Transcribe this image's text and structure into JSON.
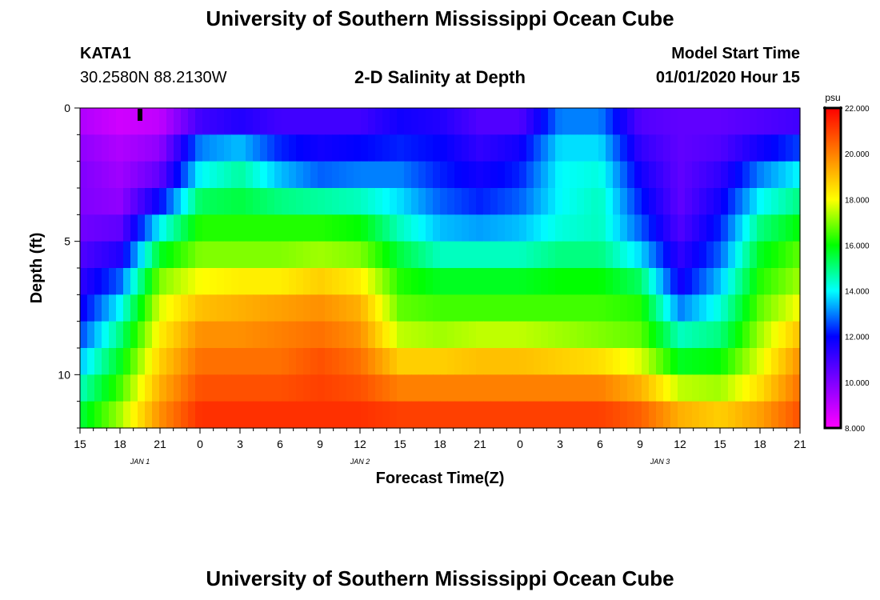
{
  "header": {
    "title": "University of Southern Mississippi Ocean Cube",
    "station": "KATA1",
    "coords": "30.2580N 88.2130W",
    "subtitle": "2-D Salinity at Depth",
    "model_start_label": "Model Start Time",
    "model_start_value": "01/01/2020 Hour 15"
  },
  "footer": {
    "title": "University of Southern Mississippi Ocean Cube"
  },
  "chart_data": {
    "type": "heatmap",
    "title": "2-D Salinity at Depth",
    "xlabel": "Forecast Time(Z)",
    "ylabel": "Depth (ft)",
    "x_tick_labels": [
      "15",
      "18",
      "21",
      "0",
      "3",
      "6",
      "9",
      "12",
      "15",
      "18",
      "21",
      "0",
      "3",
      "6",
      "9",
      "12",
      "15",
      "18",
      "21"
    ],
    "date_labels": [
      {
        "text": "JAN 1",
        "tick_index": 1.5
      },
      {
        "text": "JAN 2",
        "tick_index": 7
      },
      {
        "text": "JAN 3",
        "tick_index": 14.5
      }
    ],
    "y_ticks": [
      0,
      5,
      10
    ],
    "y_range": [
      0,
      12
    ],
    "colorbar": {
      "units": "psu",
      "min": 8.0,
      "max": 22.0,
      "tick_labels": [
        "22.000",
        "20.000",
        "18.000",
        "16.000",
        "14.000",
        "12.000",
        "10.000",
        "8.000"
      ],
      "colors": [
        "#ff00ff",
        "#8000ff",
        "#0000ff",
        "#00ffff",
        "#00ff00",
        "#ffff00",
        "#ff8000",
        "#ff0000"
      ]
    },
    "time_hours": [
      0,
      3,
      6,
      9,
      12,
      15,
      18,
      21,
      24,
      27,
      30,
      33,
      36,
      39,
      42,
      45,
      48,
      51,
      54
    ],
    "depth_levels": [
      0,
      1,
      2,
      3,
      4,
      5,
      6,
      7,
      8,
      9,
      10,
      11,
      12
    ],
    "salinity_psu": [
      [
        9.0,
        8.5,
        8.5,
        9.5,
        10.5,
        10.5,
        10.5,
        10.5,
        11.5,
        11.0,
        10.5,
        10.0,
        12.5,
        12.5,
        10.5,
        10.5,
        10.5,
        10.5,
        10.5
      ],
      [
        9.5,
        9.0,
        9.5,
        12.5,
        12.5,
        11.5,
        11.5,
        11.5,
        12.0,
        12.0,
        11.0,
        11.5,
        13.5,
        13.5,
        11.0,
        10.5,
        10.5,
        11.0,
        11.5
      ],
      [
        10.0,
        9.5,
        10.0,
        13.5,
        14.5,
        13.0,
        12.0,
        12.5,
        12.5,
        12.0,
        11.5,
        12.0,
        14.0,
        14.0,
        11.5,
        10.5,
        11.0,
        12.5,
        13.5
      ],
      [
        10.0,
        9.5,
        11.0,
        14.5,
        15.0,
        14.0,
        13.5,
        13.5,
        13.5,
        12.5,
        12.0,
        12.5,
        14.0,
        14.5,
        12.0,
        10.5,
        11.5,
        13.5,
        14.5
      ],
      [
        10.0,
        10.0,
        13.0,
        16.0,
        16.0,
        16.0,
        16.0,
        15.5,
        14.0,
        13.0,
        12.5,
        13.0,
        14.0,
        14.5,
        12.5,
        10.5,
        12.0,
        14.5,
        15.5
      ],
      [
        10.5,
        11.0,
        15.0,
        16.5,
        16.5,
        16.5,
        16.5,
        16.5,
        15.0,
        14.0,
        14.0,
        14.0,
        14.5,
        14.5,
        13.0,
        11.0,
        12.5,
        15.5,
        16.5
      ],
      [
        11.0,
        12.0,
        16.5,
        17.5,
        17.5,
        17.5,
        18.0,
        17.5,
        16.0,
        15.0,
        15.0,
        15.0,
        15.5,
        15.5,
        14.5,
        11.5,
        13.0,
        16.0,
        17.0
      ],
      [
        11.5,
        13.5,
        17.5,
        18.5,
        19.0,
        19.0,
        19.5,
        19.0,
        16.5,
        16.5,
        16.5,
        16.5,
        16.5,
        16.5,
        16.0,
        12.0,
        14.0,
        16.5,
        17.5
      ],
      [
        12.0,
        14.5,
        18.0,
        19.5,
        19.5,
        20.0,
        20.0,
        19.5,
        17.0,
        16.5,
        16.5,
        16.5,
        16.5,
        16.5,
        16.5,
        14.0,
        14.5,
        17.0,
        18.5
      ],
      [
        13.0,
        15.5,
        18.5,
        20.0,
        20.0,
        20.0,
        20.5,
        20.0,
        18.0,
        18.0,
        18.5,
        18.5,
        18.0,
        17.5,
        17.0,
        15.0,
        15.5,
        17.5,
        19.5
      ],
      [
        14.0,
        16.0,
        19.0,
        20.5,
        20.5,
        20.5,
        21.0,
        20.5,
        19.5,
        19.5,
        19.5,
        19.5,
        19.5,
        19.5,
        18.5,
        16.5,
        16.5,
        18.0,
        20.0
      ],
      [
        15.0,
        17.0,
        19.5,
        21.0,
        21.0,
        21.0,
        21.0,
        21.0,
        20.5,
        20.5,
        20.5,
        20.5,
        20.5,
        20.5,
        20.0,
        18.5,
        18.0,
        19.0,
        20.5
      ],
      [
        16.0,
        17.5,
        20.0,
        21.5,
        21.5,
        21.5,
        21.5,
        21.5,
        21.5,
        21.5,
        21.5,
        21.5,
        21.5,
        21.5,
        21.0,
        20.0,
        19.5,
        20.0,
        21.0
      ]
    ]
  }
}
